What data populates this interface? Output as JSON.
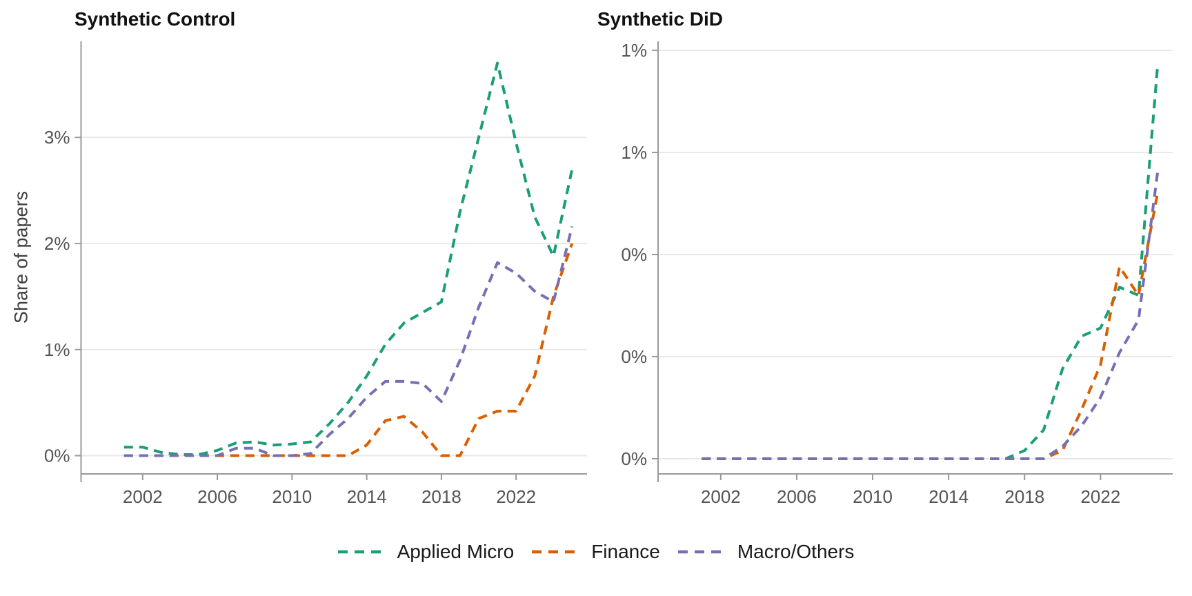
{
  "figure": {
    "background": "#ffffff",
    "grid_color": "#e8e8e8",
    "axis_color": "#999999",
    "tick_label_color": "#555555"
  },
  "legend": {
    "items": [
      {
        "label": "Applied Micro",
        "color": "#1B9E77"
      },
      {
        "label": "Finance",
        "color": "#D95F02"
      },
      {
        "label": "Macro/Others",
        "color": "#7570B3"
      }
    ]
  },
  "chart_data": [
    {
      "type": "line",
      "title": "Synthetic Control",
      "ylabel": "Share of papers",
      "unit": "percent",
      "line_style": "dashed",
      "grid": "horizontal",
      "legend_position": "bottom",
      "x": [
        2001,
        2002,
        2003,
        2004,
        2005,
        2006,
        2007,
        2008,
        2009,
        2010,
        2011,
        2012,
        2013,
        2014,
        2015,
        2016,
        2017,
        2018,
        2019,
        2020,
        2021,
        2022,
        2023,
        2024,
        2025
      ],
      "xlim": [
        1998.7,
        2025.8
      ],
      "ylim": [
        -0.172,
        3.905
      ],
      "x_ticks": [
        {
          "value": 2002,
          "label": "2002"
        },
        {
          "value": 2006,
          "label": "2006"
        },
        {
          "value": 2010,
          "label": "2010"
        },
        {
          "value": 2014,
          "label": "2014"
        },
        {
          "value": 2018,
          "label": "2018"
        },
        {
          "value": 2022,
          "label": "2022"
        }
      ],
      "y_ticks": [
        {
          "value": 0,
          "label": "0%"
        },
        {
          "value": 1,
          "label": "1%"
        },
        {
          "value": 2,
          "label": "2%"
        },
        {
          "value": 3,
          "label": "3%"
        }
      ],
      "series": [
        {
          "name": "Applied Micro",
          "color": "#1B9E77",
          "values": [
            0.08,
            0.08,
            0.03,
            0.01,
            0.01,
            0.05,
            0.12,
            0.13,
            0.1,
            0.11,
            0.13,
            0.3,
            0.5,
            0.75,
            1.05,
            1.25,
            1.35,
            1.45,
            2.3,
            3.0,
            3.7,
            2.95,
            2.25,
            1.88,
            2.7
          ]
        },
        {
          "name": "Finance",
          "color": "#D95F02",
          "values": [
            0,
            0,
            0,
            0,
            0,
            0,
            0,
            0,
            0,
            0,
            0,
            0,
            0,
            0.1,
            0.33,
            0.37,
            0.22,
            0,
            0,
            0.35,
            0.42,
            0.42,
            0.75,
            1.5,
            2.0
          ]
        },
        {
          "name": "Macro/Others",
          "color": "#7570B3",
          "values": [
            0,
            0,
            0,
            0,
            0,
            0,
            0.07,
            0.07,
            0,
            0,
            0.02,
            0.2,
            0.35,
            0.55,
            0.7,
            0.7,
            0.68,
            0.51,
            0.9,
            1.4,
            1.82,
            1.72,
            1.55,
            1.45,
            2.16
          ]
        }
      ]
    },
    {
      "type": "line",
      "title": "Synthetic DiD",
      "ylabel": "",
      "unit": "percent",
      "line_style": "dashed",
      "grid": "horizontal",
      "legend_position": "bottom",
      "x": [
        2001,
        2002,
        2003,
        2004,
        2005,
        2006,
        2007,
        2008,
        2009,
        2010,
        2011,
        2012,
        2013,
        2014,
        2015,
        2016,
        2017,
        2018,
        2019,
        2020,
        2021,
        2022,
        2023,
        2024,
        2025
      ],
      "xlim": [
        1998.7,
        2025.8
      ],
      "ylim": [
        -0.0372,
        1.0219
      ],
      "x_ticks": [
        {
          "value": 2002,
          "label": "2002"
        },
        {
          "value": 2006,
          "label": "2006"
        },
        {
          "value": 2010,
          "label": "2010"
        },
        {
          "value": 2014,
          "label": "2014"
        },
        {
          "value": 2018,
          "label": "2018"
        },
        {
          "value": 2022,
          "label": "2022"
        }
      ],
      "y_ticks": [
        {
          "value": 0.0,
          "label": "0%"
        },
        {
          "value": 0.25,
          "label": "0%"
        },
        {
          "value": 0.5,
          "label": "0%"
        },
        {
          "value": 0.75,
          "label": "1%"
        },
        {
          "value": 1.0,
          "label": "1%"
        }
      ],
      "series": [
        {
          "name": "Applied Micro",
          "color": "#1B9E77",
          "values": [
            0,
            0,
            0,
            0,
            0,
            0,
            0,
            0,
            0,
            0,
            0,
            0,
            0,
            0,
            0,
            0,
            0,
            0.02,
            0.07,
            0.22,
            0.3,
            0.32,
            0.42,
            0.4,
            0.96
          ]
        },
        {
          "name": "Finance",
          "color": "#D95F02",
          "values": [
            0,
            0,
            0,
            0,
            0,
            0,
            0,
            0,
            0,
            0,
            0,
            0,
            0,
            0,
            0,
            0,
            0,
            0,
            0,
            0.02,
            0.12,
            0.23,
            0.47,
            0.4,
            0.65
          ]
        },
        {
          "name": "Macro/Others",
          "color": "#7570B3",
          "values": [
            0,
            0,
            0,
            0,
            0,
            0,
            0,
            0,
            0,
            0,
            0,
            0,
            0,
            0,
            0,
            0,
            0,
            0,
            0,
            0.03,
            0.08,
            0.15,
            0.26,
            0.34,
            0.7
          ]
        }
      ]
    }
  ]
}
